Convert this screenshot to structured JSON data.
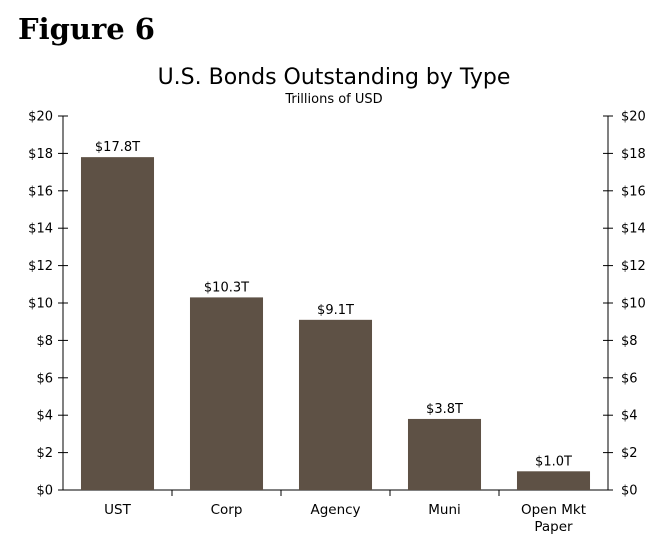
{
  "figure_label": "Figure 6",
  "chart_data": {
    "type": "bar",
    "title": "U.S. Bonds Outstanding by Type",
    "subtitle": "Trillions of USD",
    "categories": [
      [
        "UST"
      ],
      [
        "Corp"
      ],
      [
        "Agency"
      ],
      [
        "Muni"
      ],
      [
        "Open Mkt",
        "Paper"
      ]
    ],
    "values": [
      17.8,
      10.3,
      9.1,
      3.8,
      1.0
    ],
    "data_labels": [
      "$17.8T",
      "$10.3T",
      "$9.1T",
      "$3.8T",
      "$1.0T"
    ],
    "ylim": [
      0,
      20
    ],
    "yticks": [
      0,
      2,
      4,
      6,
      8,
      10,
      12,
      14,
      16,
      18,
      20
    ],
    "ytick_labels": [
      "$0",
      "$2",
      "$4",
      "$6",
      "$8",
      "$10",
      "$12",
      "$14",
      "$16",
      "$18",
      "$20"
    ],
    "right_axis": true,
    "grid": false,
    "bar_color": "#5e5145"
  }
}
